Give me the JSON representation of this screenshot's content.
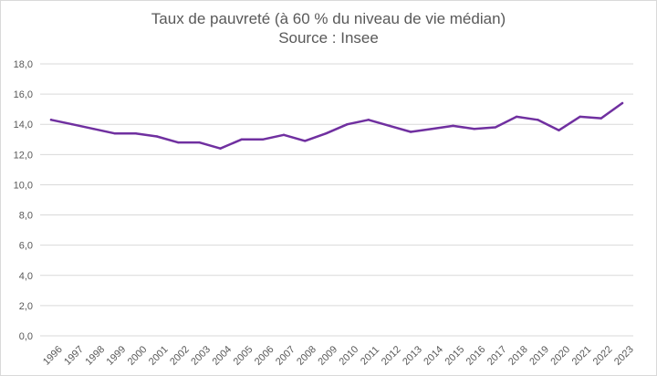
{
  "chart_data": {
    "type": "line",
    "title": "Taux de pauvreté (à 60 % du niveau de vie médian)",
    "subtitle": "Source : Insee",
    "xlabel": "",
    "ylabel": "",
    "ylim": [
      0,
      18
    ],
    "y_tick_step": 2,
    "y_tick_labels": [
      "0,0",
      "2,0",
      "4,0",
      "6,0",
      "8,0",
      "10,0",
      "12,0",
      "14,0",
      "16,0",
      "18,0"
    ],
    "grid": true,
    "legend": "none",
    "categories": [
      "1996",
      "1997",
      "1998",
      "1999",
      "2000",
      "2001",
      "2002",
      "2003",
      "2004",
      "2005",
      "2006",
      "2007",
      "2008",
      "2009",
      "2010",
      "2011",
      "2012",
      "2013",
      "2014",
      "2015",
      "2016",
      "2017",
      "2018",
      "2019",
      "2020",
      "2021",
      "2022",
      "2023"
    ],
    "series": [
      {
        "color": "#7030a0",
        "values": [
          14.3,
          14.0,
          13.7,
          13.4,
          13.4,
          13.2,
          12.8,
          12.8,
          12.4,
          13.0,
          13.0,
          13.3,
          12.9,
          13.4,
          14.0,
          14.3,
          13.9,
          13.5,
          13.7,
          13.9,
          13.7,
          13.8,
          14.5,
          14.3,
          13.6,
          14.5,
          14.4,
          15.4
        ]
      }
    ],
    "colors": {
      "line": "#7030a0",
      "grid": "#d9d9d9",
      "text": "#595959"
    }
  }
}
